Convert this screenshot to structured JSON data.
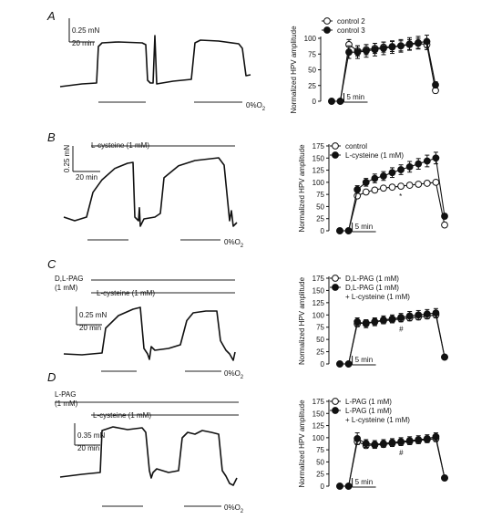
{
  "panels": [
    {
      "letter": "A",
      "scale": {
        "amp": "0.25 mN",
        "time": "20 min"
      },
      "drug_bars": [],
      "o2_label": "0%O",
      "o2_sub": "2",
      "chart_data": {
        "type": "line",
        "xlabel": "",
        "ylabel": "Normalized HPV amplitude",
        "ylim": [
          0,
          100
        ],
        "yticks": [
          0,
          25,
          50,
          75,
          100
        ],
        "x_scale_label": "5 min",
        "annotation": "",
        "series": [
          {
            "name": "control 2",
            "marker": "open",
            "x": [
              0,
              1,
              2,
              3,
              4,
              5,
              6,
              7,
              8,
              9,
              10,
              11,
              12
            ],
            "values": [
              0,
              0,
              90,
              80,
              82,
              84,
              86,
              87,
              88,
              90,
              92,
              90,
              17
            ],
            "errors": [
              0,
              0,
              8,
              8,
              8,
              8,
              8,
              8,
              8,
              8,
              8,
              8,
              4
            ]
          },
          {
            "name": "control 3",
            "marker": "filled",
            "x": [
              0,
              1,
              2,
              3,
              4,
              5,
              6,
              7,
              8,
              9,
              10,
              11,
              12
            ],
            "values": [
              0,
              0,
              78,
              78,
              80,
              82,
              84,
              86,
              88,
              91,
              93,
              95,
              26
            ],
            "errors": [
              0,
              0,
              10,
              10,
              10,
              10,
              10,
              10,
              10,
              10,
              10,
              10,
              5
            ]
          }
        ]
      }
    },
    {
      "letter": "B",
      "scale": {
        "amp": "0.25 mN",
        "time": "20 min"
      },
      "drug_bars": [
        {
          "label": "L-cysteine (1 mM)"
        }
      ],
      "o2_label": "0%O",
      "o2_sub": "2",
      "chart_data": {
        "type": "line",
        "xlabel": "",
        "ylabel": "Normalized HPV amplitude",
        "ylim": [
          0,
          175
        ],
        "yticks": [
          0,
          25,
          50,
          75,
          100,
          125,
          150,
          175
        ],
        "x_scale_label": "5 min",
        "annotation": "*",
        "series": [
          {
            "name": "control",
            "marker": "open",
            "x": [
              0,
              1,
              2,
              3,
              4,
              5,
              6,
              7,
              8,
              9,
              10,
              11,
              12
            ],
            "values": [
              0,
              0,
              72,
              80,
              84,
              88,
              90,
              92,
              94,
              96,
              98,
              100,
              12
            ],
            "errors": [
              0,
              0,
              3,
              3,
              3,
              3,
              3,
              3,
              3,
              3,
              3,
              3,
              3
            ]
          },
          {
            "name": "L-cysteine (1 mM)",
            "marker": "filled",
            "x": [
              0,
              1,
              2,
              3,
              4,
              5,
              6,
              7,
              8,
              9,
              10,
              11,
              12
            ],
            "values": [
              0,
              0,
              85,
              100,
              108,
              113,
              120,
              126,
              132,
              138,
              144,
              150,
              30
            ],
            "errors": [
              0,
              0,
              8,
              8,
              9,
              9,
              10,
              10,
              11,
              11,
              12,
              12,
              5
            ]
          }
        ]
      }
    },
    {
      "letter": "C",
      "scale": {
        "amp": "0.25 mN",
        "time": "20 min"
      },
      "drug_bars": [
        {
          "label": "D,L-PAG\n(1 mM)"
        },
        {
          "label": "L-cysteine (1 mM)"
        }
      ],
      "o2_label": "0%O",
      "o2_sub": "2",
      "chart_data": {
        "type": "line",
        "xlabel": "",
        "ylabel": "Normalized HPV amplitude",
        "ylim": [
          0,
          175
        ],
        "yticks": [
          0,
          25,
          50,
          75,
          100,
          125,
          150,
          175
        ],
        "x_scale_label": "5 min",
        "annotation": "#",
        "series": [
          {
            "name": "D,L-PAG (1 mM)",
            "marker": "open",
            "x": [
              0,
              1,
              2,
              3,
              4,
              5,
              6,
              7,
              8,
              9,
              10,
              11,
              12
            ],
            "values": [
              0,
              0,
              82,
              84,
              86,
              88,
              90,
              92,
              94,
              96,
              98,
              100,
              14
            ],
            "errors": [
              0,
              0,
              6,
              6,
              6,
              6,
              6,
              6,
              6,
              6,
              6,
              6,
              3
            ]
          },
          {
            "name": "D,L-PAG (1 mM)\n+ L-cysteine (1 mM)",
            "marker": "filled",
            "x": [
              0,
              1,
              2,
              3,
              4,
              5,
              6,
              7,
              8,
              9,
              10,
              11,
              12
            ],
            "values": [
              0,
              0,
              86,
              82,
              86,
              90,
              92,
              95,
              98,
              100,
              102,
              104,
              14
            ],
            "errors": [
              0,
              0,
              8,
              8,
              8,
              8,
              8,
              8,
              9,
              9,
              9,
              9,
              4
            ]
          }
        ]
      }
    },
    {
      "letter": "D",
      "scale": {
        "amp": "0.35 mN",
        "time": "20 min"
      },
      "drug_bars": [
        {
          "label": "L-PAG\n(1 mM)"
        },
        {
          "label": "L-cysteine (1 mM)"
        }
      ],
      "o2_label": "0%O",
      "o2_sub": "2",
      "chart_data": {
        "type": "line",
        "xlabel": "",
        "ylabel": "Normalized HPV amplitude",
        "ylim": [
          0,
          175
        ],
        "yticks": [
          0,
          25,
          50,
          75,
          100,
          125,
          150,
          175
        ],
        "x_scale_label": "5 min",
        "annotation": "#",
        "series": [
          {
            "name": "L-PAG (1 mM)",
            "marker": "open",
            "x": [
              0,
              1,
              2,
              3,
              4,
              5,
              6,
              7,
              8,
              9,
              10,
              11,
              12
            ],
            "values": [
              0,
              0,
              92,
              84,
              85,
              86,
              88,
              90,
              92,
              94,
              96,
              98,
              17
            ],
            "errors": [
              0,
              0,
              6,
              6,
              6,
              6,
              6,
              6,
              6,
              6,
              6,
              6,
              4
            ]
          },
          {
            "name": "L-PAG (1 mM)\n+ L-cysteine (1 mM)",
            "marker": "filled",
            "x": [
              0,
              1,
              2,
              3,
              4,
              5,
              6,
              7,
              8,
              9,
              10,
              11,
              12
            ],
            "values": [
              0,
              0,
              98,
              88,
              86,
              88,
              90,
              92,
              94,
              96,
              98,
              102,
              17
            ],
            "errors": [
              0,
              0,
              12,
              8,
              8,
              8,
              8,
              8,
              8,
              8,
              8,
              8,
              5
            ]
          }
        ]
      }
    }
  ]
}
